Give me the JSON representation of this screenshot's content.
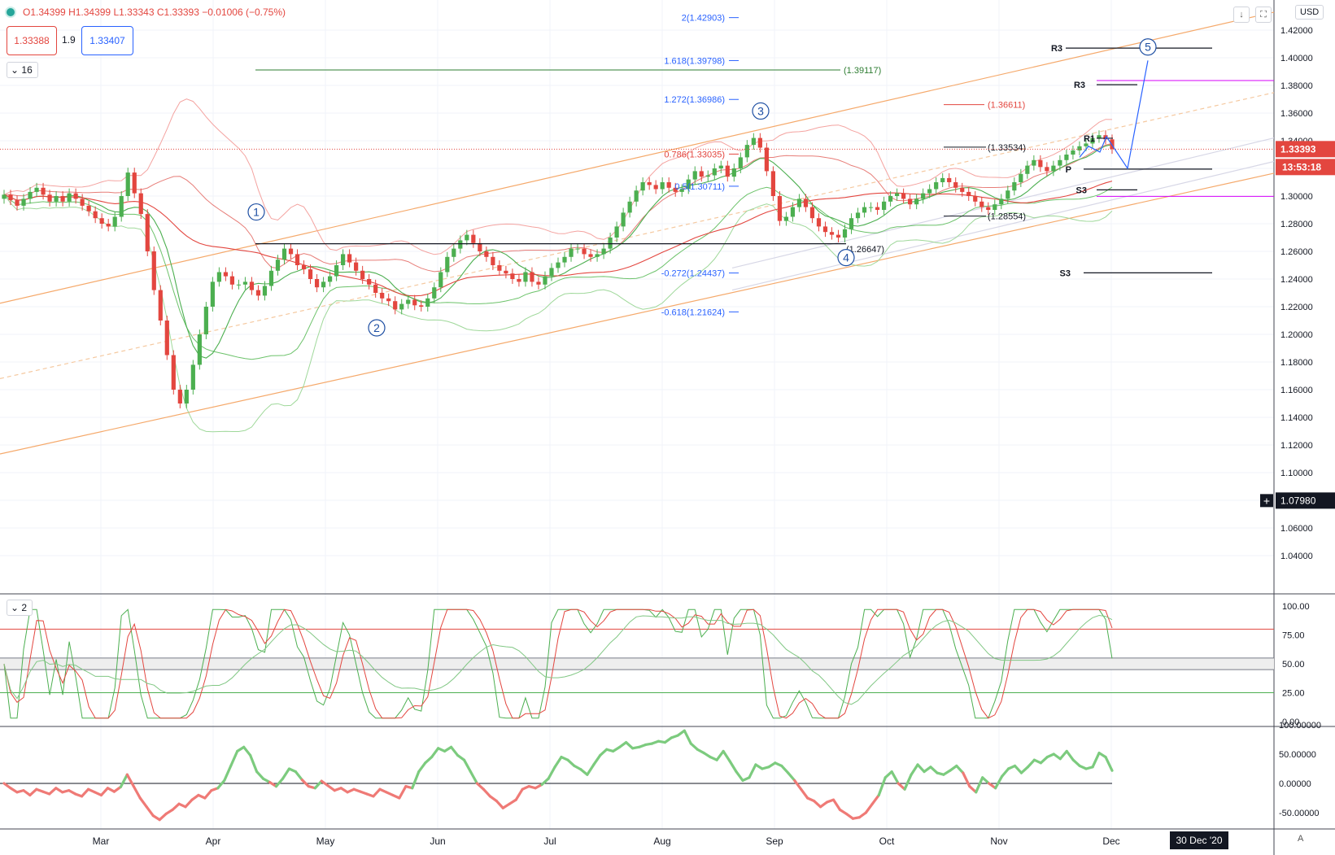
{
  "header": {
    "open": "O1.34399",
    "high": "H1.34399",
    "low": "L1.33343",
    "close": "C1.33393",
    "change": "−0.01006 (−0.75%)",
    "bid": "1.33388",
    "spread": "1.9",
    "ask": "1.33407",
    "ma_length": "16",
    "currency": "USD",
    "pane2_label": "2"
  },
  "chart_data": {
    "type": "line",
    "y_ticks": [
      "1.42000",
      "1.40000",
      "1.38000",
      "1.36000",
      "1.34000",
      "1.32000",
      "1.30000",
      "1.28000",
      "1.26000",
      "1.24000",
      "1.22000",
      "1.20000",
      "1.18000",
      "1.16000",
      "1.14000",
      "1.12000",
      "1.10000",
      "1.08000",
      "1.06000",
      "1.04000"
    ],
    "x_labels": [
      "Mar",
      "Apr",
      "May",
      "Jun",
      "Jul",
      "Aug",
      "Sep",
      "Oct",
      "Nov",
      "Dec"
    ],
    "x_label_positions_month": [
      1,
      2,
      3,
      4,
      5,
      6,
      7,
      8,
      9,
      10
    ],
    "last_price": "1.33393",
    "countdown": "13:53:18",
    "crosshair_price": "1.07980",
    "crosshair_date": "30 Dec '20",
    "close_series": [
      1.301,
      1.297,
      1.293,
      1.298,
      1.303,
      1.306,
      1.301,
      1.296,
      1.3,
      1.296,
      1.302,
      1.298,
      1.293,
      1.289,
      1.284,
      1.28,
      1.278,
      1.285,
      1.3,
      1.317,
      1.302,
      1.287,
      1.26,
      1.232,
      1.21,
      1.185,
      1.16,
      1.15,
      1.16,
      1.178,
      1.2,
      1.22,
      1.238,
      1.245,
      1.242,
      1.236,
      1.236,
      1.238,
      1.232,
      1.228,
      1.235,
      1.246,
      1.254,
      1.262,
      1.258,
      1.25,
      1.247,
      1.24,
      1.234,
      1.238,
      1.242,
      1.25,
      1.258,
      1.252,
      1.246,
      1.24,
      1.236,
      1.23,
      1.226,
      1.224,
      1.218,
      1.222,
      1.225,
      1.221,
      1.22,
      1.226,
      1.234,
      1.245,
      1.256,
      1.262,
      1.268,
      1.272,
      1.266,
      1.26,
      1.256,
      1.25,
      1.246,
      1.244,
      1.24,
      1.238,
      1.245,
      1.238,
      1.236,
      1.242,
      1.248,
      1.252,
      1.256,
      1.262,
      1.262,
      1.258,
      1.256,
      1.258,
      1.262,
      1.27,
      1.278,
      1.288,
      1.296,
      1.304,
      1.31,
      1.308,
      1.305,
      1.31,
      1.306,
      1.303,
      1.305,
      1.312,
      1.318,
      1.314,
      1.315,
      1.32,
      1.322,
      1.314,
      1.32,
      1.328,
      1.337,
      1.342,
      1.335,
      1.318,
      1.3,
      1.282,
      1.285,
      1.292,
      1.298,
      1.292,
      1.284,
      1.278,
      1.274,
      1.272,
      1.27,
      1.276,
      1.284,
      1.288,
      1.292,
      1.292,
      1.29,
      1.296,
      1.3,
      1.302,
      1.298,
      1.294,
      1.298,
      1.302,
      1.305,
      1.31,
      1.313,
      1.31,
      1.306,
      1.303,
      1.3,
      1.296,
      1.292,
      1.29,
      1.294,
      1.298,
      1.304,
      1.31,
      1.316,
      1.322,
      1.326,
      1.321,
      1.318,
      1.322,
      1.326,
      1.33,
      1.333,
      1.336,
      1.338,
      1.342,
      1.344,
      1.341,
      1.334
    ],
    "fib_levels": [
      {
        "label": "2(1.42903)",
        "value": 1.42903,
        "color": "#2962ff"
      },
      {
        "label": "1.618(1.39798)",
        "value": 1.39798,
        "color": "#2962ff"
      },
      {
        "label": "1.272(1.36986)",
        "value": 1.36986,
        "color": "#2962ff"
      },
      {
        "label": "0.786(1.33035)",
        "value": 1.33035,
        "color": "#e3463f"
      },
      {
        "label": "0.5(1.30711)",
        "value": 1.30711,
        "color": "#2962ff"
      },
      {
        "label": "-0.272(1.24437)",
        "value": 1.24437,
        "color": "#2962ff"
      },
      {
        "label": "-0.618(1.21624)",
        "value": 1.21624,
        "color": "#2962ff"
      }
    ],
    "horizontal_levels": [
      {
        "label": "(1.39117)",
        "value": 1.39117,
        "color": "#2e7d32"
      },
      {
        "label": "(1.36611)",
        "value": 1.36611,
        "color": "#e3463f"
      },
      {
        "label": "(1.33534)",
        "value": 1.33534,
        "color": "#131722"
      },
      {
        "label": "(1.28554)",
        "value": 1.28554,
        "color": "#131722"
      },
      {
        "label": "(1.26647)",
        "value": 1.26647,
        "color": "#131722"
      }
    ],
    "pivot_levels": [
      {
        "label": "R3",
        "value": 1.407
      },
      {
        "label": "R3",
        "value": 1.3805
      },
      {
        "label": "R1",
        "value": 1.3418
      },
      {
        "label": "P",
        "value": 1.3195
      },
      {
        "label": "S3",
        "value": 1.3045
      },
      {
        "label": "S3",
        "value": 1.2445
      }
    ],
    "wave_labels": [
      "1",
      "2",
      "3",
      "4",
      "5"
    ],
    "stoch_ticks": [
      "100.00",
      "75.00",
      "50.00",
      "25.00",
      "0.00"
    ],
    "stoch_levels": [
      80,
      55,
      45,
      25
    ],
    "osc_ticks": [
      "100.00000",
      "50.00000",
      "0.00000",
      "-50.00000"
    ],
    "osc_series": [
      0,
      -8,
      -15,
      -12,
      -20,
      -10,
      -14,
      -18,
      -8,
      -15,
      -12,
      -18,
      -22,
      -10,
      -15,
      -20,
      -8,
      -14,
      -6,
      15,
      -5,
      -25,
      -40,
      -55,
      -62,
      -52,
      -45,
      -35,
      -40,
      -28,
      -20,
      -25,
      -12,
      -8,
      5,
      30,
      55,
      62,
      48,
      20,
      8,
      2,
      -5,
      8,
      25,
      20,
      6,
      -5,
      -8,
      4,
      -4,
      -12,
      -8,
      -15,
      -10,
      -14,
      -18,
      -22,
      -10,
      -15,
      -20,
      -25,
      -5,
      -8,
      20,
      35,
      45,
      60,
      55,
      62,
      48,
      40,
      20,
      0,
      -10,
      -22,
      -30,
      -42,
      -35,
      -28,
      -10,
      -5,
      -8,
      -2,
      8,
      28,
      45,
      40,
      30,
      24,
      15,
      32,
      48,
      58,
      55,
      62,
      70,
      60,
      62,
      66,
      68,
      72,
      70,
      78,
      82,
      90,
      68,
      58,
      52,
      45,
      40,
      55,
      38,
      20,
      5,
      10,
      32,
      25,
      28,
      35,
      30,
      18,
      5,
      -10,
      -25,
      -30,
      -40,
      -32,
      -28,
      -45,
      -52,
      -60,
      -58,
      -50,
      -35,
      -20,
      10,
      20,
      0,
      -10,
      15,
      32,
      20,
      28,
      18,
      15,
      22,
      30,
      18,
      -5,
      -15,
      10,
      0,
      -8,
      12,
      25,
      30,
      18,
      28,
      40,
      35,
      45,
      50,
      42,
      55,
      40,
      30,
      25,
      28,
      52,
      45,
      22
    ]
  }
}
